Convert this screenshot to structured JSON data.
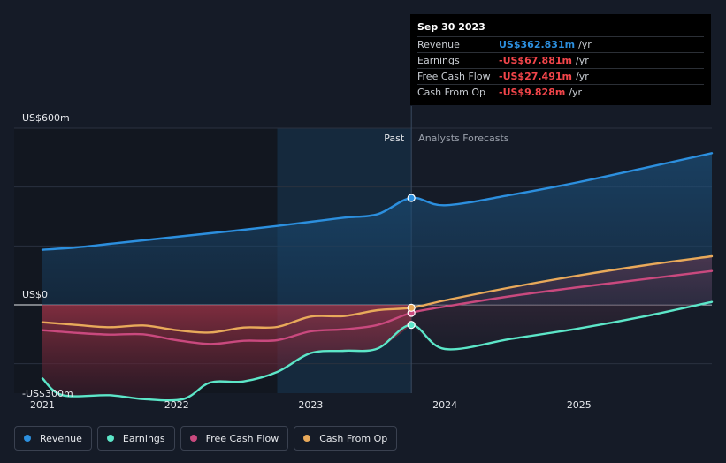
{
  "tooltip": {
    "date": "Sep 30 2023",
    "rows": [
      {
        "label": "Revenue",
        "value": "US$362.831m",
        "unit": "/yr",
        "color": "#2c8fde"
      },
      {
        "label": "Earnings",
        "value": "-US$67.881m",
        "unit": "/yr",
        "color": "#f2454a"
      },
      {
        "label": "Free Cash Flow",
        "value": "-US$27.491m",
        "unit": "/yr",
        "color": "#f2454a"
      },
      {
        "label": "Cash From Op",
        "value": "-US$9.828m",
        "unit": "/yr",
        "color": "#f2454a"
      }
    ]
  },
  "legend": [
    {
      "label": "Revenue",
      "color": "#2c8fde"
    },
    {
      "label": "Earnings",
      "color": "#5ce6c8"
    },
    {
      "label": "Free Cash Flow",
      "color": "#c9497e"
    },
    {
      "label": "Cash From Op",
      "color": "#e8a95a"
    }
  ],
  "chart_data": {
    "type": "line",
    "title": "",
    "units": "US$ millions",
    "y_axis_labels": [
      "US$600m",
      "US$0",
      "-US$300m"
    ],
    "ylim": [
      -300,
      600
    ],
    "xlim": [
      2021.0,
      2025.99
    ],
    "x_ticks": [
      {
        "label": "2021",
        "value": 2021.0
      },
      {
        "label": "2022",
        "value": 2022.0
      },
      {
        "label": "2023",
        "value": 2023.0
      },
      {
        "label": "2024",
        "value": 2024.0
      },
      {
        "label": "2025",
        "value": 2025.0
      }
    ],
    "divider_x": 2023.75,
    "past_region_start": 2022.75,
    "past_label": "Past",
    "forecast_label": "Analysts Forecasts",
    "series": [
      {
        "name": "Revenue",
        "color": "#2c8fde",
        "points": [
          [
            2021.0,
            187
          ],
          [
            2021.25,
            195
          ],
          [
            2021.5,
            207
          ],
          [
            2021.75,
            219
          ],
          [
            2022.0,
            231
          ],
          [
            2022.25,
            243
          ],
          [
            2022.5,
            255
          ],
          [
            2022.75,
            268
          ],
          [
            2023.0,
            282
          ],
          [
            2023.25,
            296
          ],
          [
            2023.5,
            308
          ],
          [
            2023.75,
            363
          ],
          [
            2024.0,
            338
          ],
          [
            2024.5,
            374
          ],
          [
            2025.0,
            417
          ],
          [
            2025.5,
            466
          ],
          [
            2025.99,
            515
          ]
        ]
      },
      {
        "name": "Earnings",
        "color": "#5ce6c8",
        "points": [
          [
            2021.0,
            -250
          ],
          [
            2021.15,
            -307
          ],
          [
            2021.5,
            -307
          ],
          [
            2021.75,
            -320
          ],
          [
            2022.05,
            -320
          ],
          [
            2022.25,
            -264
          ],
          [
            2022.5,
            -260
          ],
          [
            2022.75,
            -228
          ],
          [
            2023.0,
            -164
          ],
          [
            2023.25,
            -156
          ],
          [
            2023.5,
            -148
          ],
          [
            2023.75,
            -68
          ],
          [
            2024.0,
            -150
          ],
          [
            2024.5,
            -115
          ],
          [
            2025.0,
            -80
          ],
          [
            2025.5,
            -38
          ],
          [
            2025.99,
            10
          ]
        ]
      },
      {
        "name": "Free Cash Flow",
        "color": "#c9497e",
        "points": [
          [
            2021.0,
            -86
          ],
          [
            2021.25,
            -95
          ],
          [
            2021.5,
            -101
          ],
          [
            2021.75,
            -100
          ],
          [
            2022.0,
            -120
          ],
          [
            2022.25,
            -133
          ],
          [
            2022.5,
            -122
          ],
          [
            2022.75,
            -120
          ],
          [
            2023.0,
            -90
          ],
          [
            2023.25,
            -83
          ],
          [
            2023.5,
            -68
          ],
          [
            2023.75,
            -27
          ],
          [
            2024.0,
            -6
          ],
          [
            2024.5,
            30
          ],
          [
            2025.0,
            60
          ],
          [
            2025.5,
            88
          ],
          [
            2025.99,
            115
          ]
        ]
      },
      {
        "name": "Cash From Op",
        "color": "#e8a95a",
        "points": [
          [
            2021.0,
            -59
          ],
          [
            2021.25,
            -68
          ],
          [
            2021.5,
            -76
          ],
          [
            2021.75,
            -70
          ],
          [
            2022.0,
            -86
          ],
          [
            2022.25,
            -94
          ],
          [
            2022.5,
            -77
          ],
          [
            2022.75,
            -75
          ],
          [
            2023.0,
            -40
          ],
          [
            2023.25,
            -38
          ],
          [
            2023.5,
            -18
          ],
          [
            2023.75,
            -10
          ],
          [
            2024.0,
            15
          ],
          [
            2024.5,
            60
          ],
          [
            2025.0,
            100
          ],
          [
            2025.5,
            135
          ],
          [
            2025.99,
            165
          ]
        ]
      }
    ]
  }
}
